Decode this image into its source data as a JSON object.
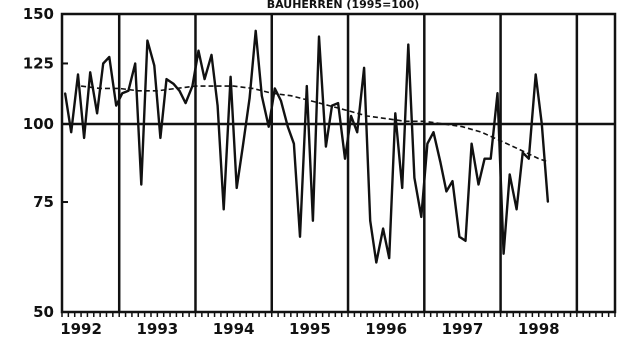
{
  "chart_data": {
    "type": "line",
    "title": "BAUHERREN (1995=100)",
    "xlabel": "",
    "ylabel": "",
    "y_scale": "log",
    "ylim": [
      50,
      150
    ],
    "y_ticks": [
      50,
      75,
      100,
      125,
      150
    ],
    "x_range": [
      1991.75,
      1999.0
    ],
    "x_tick_labels": [
      "1992",
      "1993",
      "1994",
      "1995",
      "1996",
      "1997",
      "1998"
    ],
    "year_boundaries": [
      1992.5,
      1993.5,
      1994.5,
      1995.5,
      1996.5,
      1997.5,
      1998.5
    ],
    "reference_line": 100,
    "grid": "vertical lines at year boundaries, horizontal line at 100",
    "legend": "none",
    "line_color": "#111111",
    "series": [
      {
        "style": "solid",
        "x": [
          1991.79,
          1991.87,
          1991.96,
          1992.04,
          1992.12,
          1992.21,
          1992.29,
          1992.37,
          1992.46,
          1992.54,
          1992.62,
          1992.71,
          1992.79,
          1992.87,
          1992.96,
          1993.04,
          1993.12,
          1993.21,
          1993.29,
          1993.37,
          1993.46,
          1993.54,
          1993.62,
          1993.71,
          1993.79,
          1993.87,
          1993.96,
          1994.04,
          1994.12,
          1994.21,
          1994.29,
          1994.37,
          1994.46,
          1994.54,
          1994.62,
          1994.71,
          1994.79,
          1994.87,
          1994.96,
          1995.04,
          1995.12,
          1995.21,
          1995.29,
          1995.37,
          1995.46,
          1995.54,
          1995.62,
          1995.71,
          1995.79,
          1995.87,
          1995.96,
          1996.04,
          1996.12,
          1996.21,
          1996.29,
          1996.37,
          1996.46,
          1996.54,
          1996.62,
          1996.71,
          1996.79,
          1996.87,
          1996.96,
          1997.04,
          1997.12,
          1997.21,
          1997.29,
          1997.37,
          1997.46,
          1997.54,
          1997.62,
          1997.71,
          1997.79,
          1997.87,
          1997.96,
          1998.04,
          1998.12
        ],
        "values": [
          112,
          97,
          120,
          95,
          121,
          104,
          125,
          128,
          107,
          112,
          113,
          125,
          80,
          136,
          124,
          95,
          118,
          116,
          113,
          108,
          115,
          131,
          118,
          129,
          107,
          73,
          119,
          79,
          92,
          110,
          141,
          111,
          99,
          114,
          109,
          99,
          93,
          66,
          115,
          70,
          138,
          92,
          107,
          108,
          88,
          103,
          97,
          123,
          70,
          60,
          68,
          61,
          104,
          79,
          134,
          82,
          71,
          93,
          97,
          87,
          78,
          81,
          66,
          65,
          93,
          80,
          88,
          88,
          112,
          62,
          83,
          73,
          90,
          88,
          120,
          100,
          75
        ]
      },
      {
        "style": "dashed",
        "x": [
          1992.0,
          1992.25,
          1992.5,
          1992.75,
          1993.0,
          1993.25,
          1993.5,
          1993.75,
          1994.0,
          1994.25,
          1994.5,
          1994.75,
          1995.0,
          1995.25,
          1995.5,
          1995.75,
          1996.0,
          1996.25,
          1996.5,
          1996.75,
          1997.0,
          1997.25,
          1997.5,
          1997.75,
          1998.0,
          1998.12
        ],
        "values": [
          115,
          114,
          114,
          113,
          113,
          114,
          115,
          115,
          115,
          114,
          112,
          111,
          109,
          107,
          105,
          103,
          102,
          101,
          101,
          100,
          99,
          97,
          94,
          91,
          88,
          87
        ]
      }
    ]
  }
}
